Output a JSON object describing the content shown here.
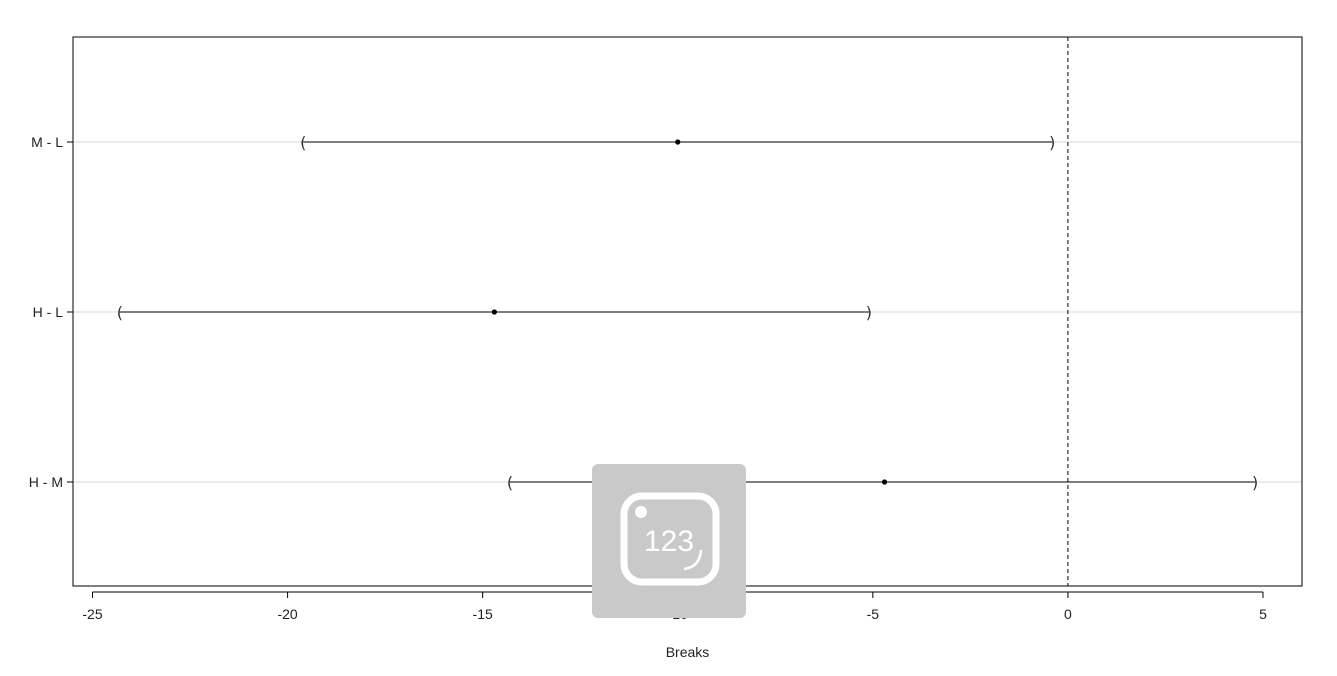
{
  "chart_data": {
    "type": "interval",
    "xlabel": "Breaks",
    "xlim": [
      -25.5,
      6
    ],
    "xticks": [
      -25,
      -20,
      -15,
      -10,
      -5,
      0,
      5
    ],
    "reference_line": 0,
    "grid": "horizontal",
    "intervals": [
      {
        "label": "M - L",
        "estimate": -10.0,
        "lower": -19.6,
        "upper": -0.4
      },
      {
        "label": "H - L",
        "estimate": -14.7,
        "lower": -24.3,
        "upper": -5.1
      },
      {
        "label": "H - M",
        "estimate": -4.7,
        "lower": -14.3,
        "upper": 4.8
      }
    ]
  },
  "watermark": {
    "text": "123",
    "icon": "app-logo-icon",
    "color": "#c9c9c9"
  }
}
